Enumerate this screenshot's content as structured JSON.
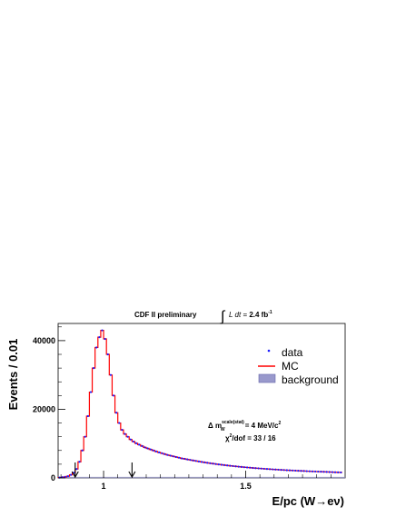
{
  "header": {
    "label": "CDF II preliminary",
    "lumi_prefix": "L dt = ",
    "lumi_value": "2.4 fb",
    "lumi_exp": "-1"
  },
  "legend": {
    "data": "data",
    "mc": "MC",
    "background": "background"
  },
  "annotation": {
    "line1": "Δ m",
    "line1_sub": "W",
    "line1_sup": "scale(stat)",
    "line1_tail": " = 4 MeV/c",
    "line1_tail_sup": "2",
    "line2_chi": "χ",
    "line2_sup": "2",
    "line2_tail": "/dof = 33 / 16"
  },
  "colors": {
    "data": "#1a1aff",
    "mc": "#ff0000",
    "background": "#9999cc",
    "axis": "#000000"
  },
  "chart_data": {
    "type": "line",
    "title": "",
    "xlabel": "E/pc (W→eν)",
    "ylabel": "Events / 0.01",
    "xlim": [
      0.84,
      1.85
    ],
    "ylim": [
      0,
      45000
    ],
    "xticks": [
      1,
      1.5
    ],
    "xtick_labels": [
      "1",
      "1.5"
    ],
    "yticks": [
      0,
      20000,
      40000
    ],
    "ytick_labels": [
      "0",
      "20000",
      "40000"
    ],
    "fit_window_arrows": [
      0.9,
      1.1
    ],
    "grid": false,
    "legend_position": "top-right",
    "series": [
      {
        "name": "data",
        "marker": "point",
        "x": [
          0.845,
          0.855,
          0.865,
          0.875,
          0.885,
          0.895,
          0.905,
          0.915,
          0.925,
          0.935,
          0.945,
          0.955,
          0.965,
          0.975,
          0.985,
          0.995,
          1.005,
          1.015,
          1.025,
          1.035,
          1.045,
          1.055,
          1.065,
          1.075,
          1.085,
          1.095,
          1.105,
          1.115,
          1.125,
          1.135,
          1.145,
          1.155,
          1.165,
          1.175,
          1.185,
          1.195,
          1.205,
          1.215,
          1.225,
          1.235,
          1.245,
          1.255,
          1.265,
          1.275,
          1.285,
          1.295,
          1.305,
          1.315,
          1.325,
          1.335,
          1.345,
          1.355,
          1.365,
          1.375,
          1.385,
          1.395,
          1.405,
          1.415,
          1.425,
          1.435,
          1.445,
          1.455,
          1.465,
          1.475,
          1.485,
          1.495,
          1.505,
          1.515,
          1.525,
          1.535,
          1.545,
          1.555,
          1.565,
          1.575,
          1.585,
          1.595,
          1.605,
          1.615,
          1.625,
          1.635,
          1.645,
          1.655,
          1.665,
          1.675,
          1.685,
          1.695,
          1.705,
          1.715,
          1.725,
          1.735,
          1.745,
          1.755,
          1.765,
          1.775,
          1.785,
          1.795,
          1.805,
          1.815,
          1.825,
          1.835
        ],
        "values": [
          100,
          200,
          300,
          500,
          900,
          1500,
          2600,
          4700,
          8000,
          12000,
          18000,
          25000,
          32000,
          38000,
          41000,
          43000,
          40500,
          36000,
          30000,
          24000,
          19000,
          16000,
          14000,
          12800,
          12000,
          11200,
          10600,
          10100,
          9700,
          9300,
          8900,
          8600,
          8300,
          8000,
          7700,
          7450,
          7200,
          6950,
          6700,
          6500,
          6300,
          6100,
          5900,
          5700,
          5550,
          5400,
          5250,
          5100,
          4950,
          4800,
          4660,
          4530,
          4400,
          4280,
          4160,
          4050,
          3940,
          3840,
          3740,
          3640,
          3550,
          3460,
          3370,
          3290,
          3210,
          3130,
          3060,
          2990,
          2920,
          2850,
          2790,
          2730,
          2670,
          2610,
          2560,
          2500,
          2450,
          2400,
          2350,
          2300,
          2250,
          2210,
          2170,
          2130,
          2090,
          2050,
          2010,
          1970,
          1940,
          1900,
          1870,
          1840,
          1810,
          1780,
          1750,
          1720,
          1690,
          1660,
          1630,
          1600
        ]
      },
      {
        "name": "MC",
        "marker": "step",
        "x": [
          0.845,
          0.855,
          0.865,
          0.875,
          0.885,
          0.895,
          0.905,
          0.915,
          0.925,
          0.935,
          0.945,
          0.955,
          0.965,
          0.975,
          0.985,
          0.995,
          1.005,
          1.015,
          1.025,
          1.035,
          1.045,
          1.055,
          1.065,
          1.075,
          1.085,
          1.095,
          1.105,
          1.115,
          1.125,
          1.135,
          1.145,
          1.155,
          1.165,
          1.175,
          1.185,
          1.195,
          1.205,
          1.215,
          1.225,
          1.235,
          1.245,
          1.255,
          1.265,
          1.275,
          1.285,
          1.295,
          1.305,
          1.315,
          1.325,
          1.335,
          1.345,
          1.355,
          1.365,
          1.375,
          1.385,
          1.395,
          1.405,
          1.415,
          1.425,
          1.435,
          1.445,
          1.455,
          1.465,
          1.475,
          1.485,
          1.495,
          1.505,
          1.515,
          1.525,
          1.535,
          1.545,
          1.555,
          1.565,
          1.575,
          1.585,
          1.595,
          1.605,
          1.615,
          1.625,
          1.635,
          1.645,
          1.655,
          1.665,
          1.675,
          1.685,
          1.695,
          1.705,
          1.715,
          1.725,
          1.735,
          1.745,
          1.755,
          1.765,
          1.775,
          1.785,
          1.795,
          1.805,
          1.815,
          1.825,
          1.835
        ],
        "values": [
          100,
          200,
          300,
          500,
          900,
          1500,
          2600,
          4700,
          8000,
          12000,
          18000,
          25000,
          32000,
          38000,
          41000,
          43000,
          40500,
          36000,
          30000,
          24000,
          19000,
          16000,
          14000,
          12800,
          12000,
          11200,
          10600,
          10100,
          9700,
          9300,
          8900,
          8600,
          8300,
          8000,
          7700,
          7450,
          7200,
          6950,
          6700,
          6500,
          6300,
          6100,
          5900,
          5700,
          5550,
          5400,
          5250,
          5100,
          4950,
          4800,
          4660,
          4530,
          4400,
          4280,
          4160,
          4050,
          3940,
          3840,
          3740,
          3640,
          3550,
          3460,
          3370,
          3290,
          3210,
          3130,
          3060,
          2990,
          2920,
          2850,
          2790,
          2730,
          2670,
          2610,
          2560,
          2500,
          2450,
          2400,
          2350,
          2300,
          2250,
          2210,
          2170,
          2130,
          2090,
          2050,
          2010,
          1970,
          1940,
          1900,
          1870,
          1840,
          1810,
          1780,
          1750,
          1720,
          1690,
          1660,
          1630,
          1600
        ]
      },
      {
        "name": "background",
        "marker": "fill",
        "x": [
          0.85,
          1.85
        ],
        "values": [
          50,
          50
        ]
      }
    ]
  }
}
